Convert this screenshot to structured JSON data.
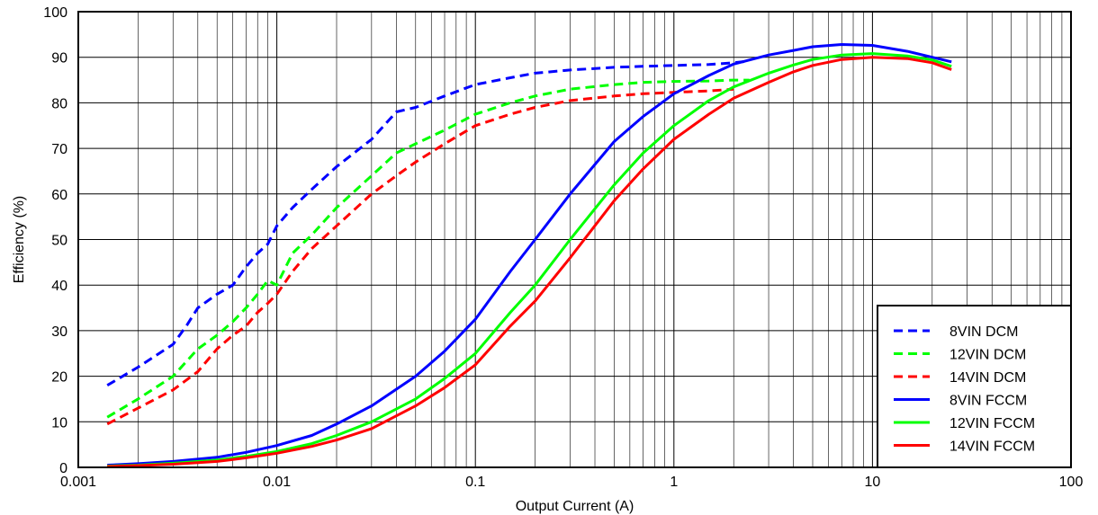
{
  "chart_data": {
    "type": "line",
    "xlabel": "Output Current (A)",
    "ylabel": "Efficiency (%)",
    "xscale": "log",
    "xlim": [
      0.001,
      100
    ],
    "ylim": [
      0,
      100
    ],
    "x_ticks": [
      {
        "value": 0.001,
        "label": "0.001"
      },
      {
        "value": 0.01,
        "label": "0.01"
      },
      {
        "value": 0.1,
        "label": "0.1"
      },
      {
        "value": 1,
        "label": "1"
      },
      {
        "value": 10,
        "label": "10"
      },
      {
        "value": 100,
        "label": "100"
      }
    ],
    "y_ticks": [
      {
        "value": 0,
        "label": "0"
      },
      {
        "value": 10,
        "label": "10"
      },
      {
        "value": 20,
        "label": "20"
      },
      {
        "value": 30,
        "label": "30"
      },
      {
        "value": 40,
        "label": "40"
      },
      {
        "value": 50,
        "label": "50"
      },
      {
        "value": 60,
        "label": "60"
      },
      {
        "value": 70,
        "label": "70"
      },
      {
        "value": 80,
        "label": "80"
      },
      {
        "value": 90,
        "label": "90"
      },
      {
        "value": 100,
        "label": "100"
      }
    ],
    "grid": true,
    "legend_position": "bottom-right",
    "series": [
      {
        "name": "8VIN DCM",
        "color": "#0000ff",
        "dash": true,
        "x": [
          0.0014,
          0.002,
          0.003,
          0.0035,
          0.004,
          0.005,
          0.006,
          0.007,
          0.008,
          0.009,
          0.01,
          0.012,
          0.015,
          0.02,
          0.03,
          0.04,
          0.05,
          0.07,
          0.1,
          0.15,
          0.2,
          0.3,
          0.5,
          0.7,
          1,
          1.5,
          2,
          2.4
        ],
        "y": [
          18,
          22,
          27,
          31,
          35,
          38,
          40,
          44,
          47,
          49,
          53,
          57,
          61,
          66,
          72,
          78,
          79,
          81.5,
          84,
          85.5,
          86.5,
          87.2,
          87.8,
          88,
          88.2,
          88.4,
          88.8,
          89.2
        ]
      },
      {
        "name": "12VIN DCM",
        "color": "#00ff00",
        "dash": true,
        "x": [
          0.0014,
          0.002,
          0.003,
          0.004,
          0.005,
          0.006,
          0.007,
          0.008,
          0.009,
          0.01,
          0.012,
          0.015,
          0.02,
          0.03,
          0.04,
          0.05,
          0.07,
          0.1,
          0.15,
          0.2,
          0.3,
          0.5,
          0.7,
          1,
          1.5,
          2,
          2.4
        ],
        "y": [
          11,
          15,
          20,
          26,
          29,
          32,
          35,
          38,
          41,
          40,
          47,
          51,
          57,
          64,
          69,
          71,
          74,
          77.5,
          80,
          81.5,
          83,
          84,
          84.5,
          84.7,
          84.8,
          85,
          85
        ]
      },
      {
        "name": "14VIN DCM",
        "color": "#ff0000",
        "dash": true,
        "x": [
          0.0014,
          0.002,
          0.003,
          0.004,
          0.005,
          0.006,
          0.007,
          0.008,
          0.009,
          0.01,
          0.012,
          0.015,
          0.02,
          0.03,
          0.04,
          0.05,
          0.07,
          0.1,
          0.15,
          0.2,
          0.3,
          0.5,
          0.7,
          1,
          1.5,
          2
        ],
        "y": [
          9.5,
          13,
          17,
          21,
          26,
          29,
          31,
          34,
          36,
          38,
          43,
          48,
          53,
          60,
          64,
          67,
          71,
          75,
          77.5,
          79,
          80.5,
          81.5,
          82,
          82.3,
          82.6,
          83
        ]
      },
      {
        "name": "8VIN FCCM",
        "color": "#0000ff",
        "dash": false,
        "x": [
          0.0014,
          0.002,
          0.003,
          0.005,
          0.007,
          0.01,
          0.015,
          0.02,
          0.03,
          0.05,
          0.07,
          0.1,
          0.15,
          0.2,
          0.3,
          0.5,
          0.7,
          1,
          1.5,
          2,
          3,
          4,
          5,
          7,
          10,
          15,
          20,
          25
        ],
        "y": [
          0.5,
          0.8,
          1.3,
          2.2,
          3.3,
          4.8,
          7,
          9.5,
          13.5,
          20,
          25.5,
          32.5,
          43,
          50,
          60,
          71.5,
          77,
          82,
          86,
          88.5,
          90.5,
          91.5,
          92.3,
          92.8,
          92.6,
          91.3,
          90,
          89
        ]
      },
      {
        "name": "12VIN FCCM",
        "color": "#00ff00",
        "dash": false,
        "x": [
          0.0014,
          0.002,
          0.003,
          0.005,
          0.007,
          0.01,
          0.015,
          0.02,
          0.03,
          0.05,
          0.07,
          0.1,
          0.15,
          0.2,
          0.3,
          0.5,
          0.7,
          1,
          1.5,
          2,
          3,
          4,
          5,
          7,
          10,
          15,
          20,
          25
        ],
        "y": [
          0.3,
          0.5,
          0.9,
          1.6,
          2.4,
          3.5,
          5.2,
          7,
          10,
          15,
          19.5,
          25,
          34,
          40,
          50,
          62,
          69,
          75,
          80.5,
          83.5,
          86.5,
          88.3,
          89.5,
          90.5,
          90.8,
          90.3,
          89.4,
          88
        ]
      },
      {
        "name": "14VIN FCCM",
        "color": "#ff0000",
        "dash": false,
        "x": [
          0.0014,
          0.002,
          0.003,
          0.005,
          0.007,
          0.01,
          0.015,
          0.02,
          0.03,
          0.05,
          0.07,
          0.1,
          0.15,
          0.2,
          0.3,
          0.5,
          0.7,
          1,
          1.5,
          2,
          3,
          4,
          5,
          7,
          10,
          15,
          20,
          25
        ],
        "y": [
          0.2,
          0.4,
          0.7,
          1.3,
          2.1,
          3.1,
          4.6,
          6,
          8.5,
          13.5,
          17.5,
          22.5,
          31,
          36.5,
          46,
          58.5,
          65.5,
          72,
          77.5,
          81,
          84.5,
          86.8,
          88.2,
          89.5,
          90,
          89.7,
          88.8,
          87.3
        ]
      }
    ]
  }
}
